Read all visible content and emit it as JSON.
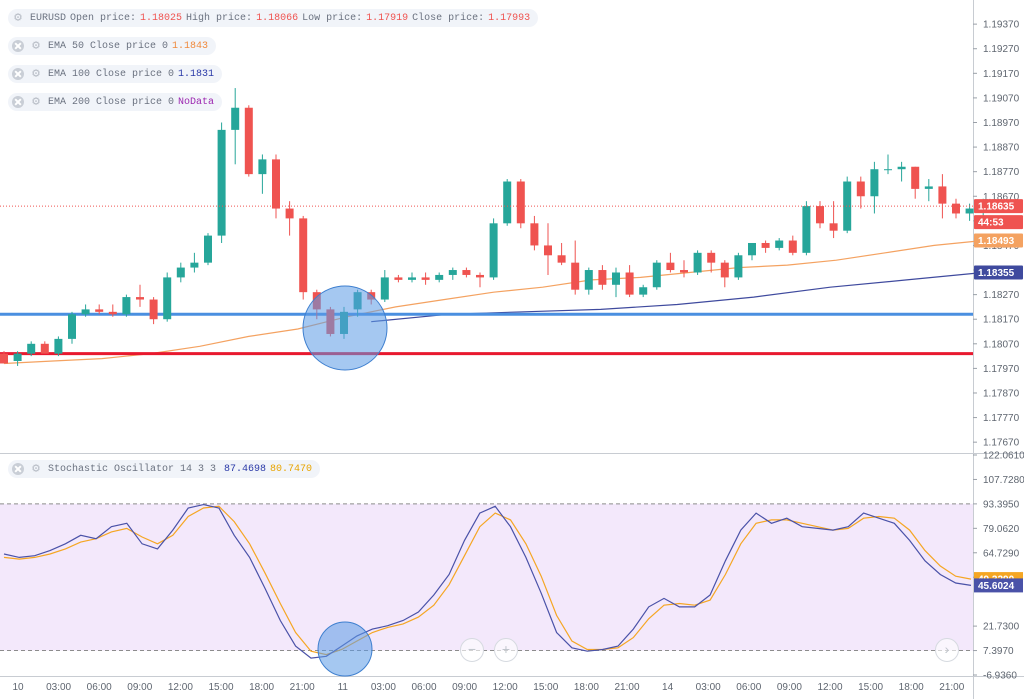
{
  "legends": {
    "main": {
      "symbol": "EURUSD",
      "open_label": "Open price:",
      "open_value": "1.18025",
      "high_label": "High price:",
      "high_value": "1.18066",
      "low_label": "Low price:",
      "low_value": "1.17919",
      "close_label": "Close price:",
      "close_value": "1.17993"
    },
    "ema50": {
      "label": "EMA 50 Close price 0",
      "value": "1.1843"
    },
    "ema100": {
      "label": "EMA 100 Close price 0",
      "value": "1.1831"
    },
    "ema200": {
      "label": "EMA 200 Close price 0",
      "value": "NoData"
    },
    "stoch": {
      "label": "Stochastic Oscillator 14 3 3",
      "k_value": "87.4698",
      "d_value": "80.7470"
    }
  },
  "colors": {
    "up": "#26a69a",
    "down": "#ef5350",
    "ema50": "#f4a261",
    "ema100": "#3f4a9e",
    "k_line": "#4a52a8",
    "d_line": "#f5a623",
    "support": "#e8182e",
    "resistance": "#4a8fe0",
    "stoch_band": "#f3e8fb",
    "circle": "#5b9ae6"
  },
  "chart_data": [
    {
      "type": "candlestick",
      "symbol": "EURUSD",
      "y_ticks": [
        "1.19370",
        "1.19270",
        "1.19170",
        "1.19070",
        "1.18970",
        "1.18870",
        "1.18770",
        "1.18670",
        "1.18570",
        "1.18470",
        "1.18370",
        "1.18270",
        "1.18170",
        "1.18070",
        "1.17970",
        "1.17870",
        "1.17770",
        "1.17670"
      ],
      "ylim": [
        1.1763,
        1.1946
      ],
      "x_ticks": [
        "10",
        "03:00",
        "06:00",
        "09:00",
        "12:00",
        "15:00",
        "18:00",
        "21:00",
        "11",
        "03:00",
        "06:00",
        "09:00",
        "12:00",
        "15:00",
        "18:00",
        "21:00",
        "14",
        "03:00",
        "06:00",
        "09:00",
        "12:00",
        "15:00",
        "18:00",
        "21:00"
      ],
      "price_labels": {
        "last": "1.18635",
        "countdown": "44:53",
        "ema50": "1.18493",
        "ema100": "1.18355"
      },
      "horizontal_lines": {
        "resistance": 1.1819,
        "support": 1.1803
      },
      "candles": [
        [
          1.1803,
          1.1804,
          1.1799,
          1.1799
        ],
        [
          1.18,
          1.1804,
          1.1798,
          1.1803
        ],
        [
          1.1803,
          1.1808,
          1.1802,
          1.1807
        ],
        [
          1.1807,
          1.1808,
          1.1803,
          1.1803
        ],
        [
          1.1803,
          1.181,
          1.1802,
          1.1809
        ],
        [
          1.1809,
          1.182,
          1.1807,
          1.1819
        ],
        [
          1.1819,
          1.1823,
          1.1818,
          1.1821
        ],
        [
          1.1821,
          1.1823,
          1.1819,
          1.182
        ],
        [
          1.182,
          1.1823,
          1.1818,
          1.1819
        ],
        [
          1.1819,
          1.1827,
          1.1818,
          1.1826
        ],
        [
          1.1826,
          1.1831,
          1.1822,
          1.1825
        ],
        [
          1.1825,
          1.1826,
          1.1815,
          1.1817
        ],
        [
          1.1817,
          1.1836,
          1.1816,
          1.1834
        ],
        [
          1.1834,
          1.184,
          1.1832,
          1.1838
        ],
        [
          1.1838,
          1.1844,
          1.1836,
          1.184
        ],
        [
          1.184,
          1.1852,
          1.1839,
          1.1851
        ],
        [
          1.1851,
          1.1897,
          1.1848,
          1.1894
        ],
        [
          1.1894,
          1.1911,
          1.188,
          1.1903
        ],
        [
          1.1903,
          1.1904,
          1.1875,
          1.1876
        ],
        [
          1.1876,
          1.1884,
          1.1868,
          1.1882
        ],
        [
          1.1882,
          1.1884,
          1.1858,
          1.1862
        ],
        [
          1.1862,
          1.1865,
          1.1851,
          1.1858
        ],
        [
          1.1858,
          1.1859,
          1.1825,
          1.1828
        ],
        [
          1.1828,
          1.1829,
          1.1817,
          1.1821
        ],
        [
          1.1821,
          1.1822,
          1.181,
          1.1811
        ],
        [
          1.1811,
          1.1822,
          1.1809,
          1.182
        ],
        [
          1.1821,
          1.1829,
          1.1818,
          1.1828
        ],
        [
          1.1828,
          1.1829,
          1.1823,
          1.1825
        ],
        [
          1.1825,
          1.1837,
          1.1824,
          1.1834
        ],
        [
          1.1834,
          1.1835,
          1.1832,
          1.1833
        ],
        [
          1.1833,
          1.1836,
          1.1832,
          1.1834
        ],
        [
          1.1834,
          1.1836,
          1.1831,
          1.1833
        ],
        [
          1.1833,
          1.1836,
          1.1832,
          1.1835
        ],
        [
          1.1835,
          1.1838,
          1.1833,
          1.1837
        ],
        [
          1.1837,
          1.1838,
          1.1834,
          1.1835
        ],
        [
          1.1835,
          1.1836,
          1.183,
          1.1834
        ],
        [
          1.1834,
          1.1858,
          1.1833,
          1.1856
        ],
        [
          1.1856,
          1.1874,
          1.1855,
          1.1873
        ],
        [
          1.1873,
          1.1874,
          1.1854,
          1.1856
        ],
        [
          1.1856,
          1.1859,
          1.1845,
          1.1847
        ],
        [
          1.1847,
          1.1856,
          1.1835,
          1.1843
        ],
        [
          1.1843,
          1.1848,
          1.1839,
          1.184
        ],
        [
          1.184,
          1.1849,
          1.1827,
          1.1829
        ],
        [
          1.1829,
          1.1838,
          1.1827,
          1.1837
        ],
        [
          1.1837,
          1.1839,
          1.1829,
          1.1831
        ],
        [
          1.1831,
          1.1838,
          1.1826,
          1.1836
        ],
        [
          1.1836,
          1.1839,
          1.1826,
          1.1827
        ],
        [
          1.1827,
          1.1831,
          1.1826,
          1.183
        ],
        [
          1.183,
          1.1841,
          1.1829,
          1.184
        ],
        [
          1.184,
          1.1844,
          1.1836,
          1.1837
        ],
        [
          1.1837,
          1.1841,
          1.1834,
          1.1836
        ],
        [
          1.1836,
          1.1845,
          1.1835,
          1.1844
        ],
        [
          1.1844,
          1.1845,
          1.1836,
          1.184
        ],
        [
          1.184,
          1.1841,
          1.183,
          1.1834
        ],
        [
          1.1834,
          1.1844,
          1.1833,
          1.1843
        ],
        [
          1.1843,
          1.1848,
          1.1841,
          1.1848
        ],
        [
          1.1848,
          1.1849,
          1.1844,
          1.1846
        ],
        [
          1.1846,
          1.185,
          1.1845,
          1.1849
        ],
        [
          1.1849,
          1.1851,
          1.1843,
          1.1844
        ],
        [
          1.1844,
          1.1865,
          1.1843,
          1.1863
        ],
        [
          1.1863,
          1.1865,
          1.1854,
          1.1856
        ],
        [
          1.1856,
          1.1865,
          1.185,
          1.1853
        ],
        [
          1.1853,
          1.1875,
          1.1852,
          1.1873
        ],
        [
          1.1873,
          1.1875,
          1.1862,
          1.1867
        ],
        [
          1.1867,
          1.1881,
          1.186,
          1.1878
        ],
        [
          1.1878,
          1.1884,
          1.1876,
          1.1878
        ],
        [
          1.1878,
          1.1881,
          1.1873,
          1.1879
        ],
        [
          1.1879,
          1.1879,
          1.1866,
          1.187
        ],
        [
          1.187,
          1.1874,
          1.1865,
          1.1871
        ],
        [
          1.1871,
          1.1876,
          1.1858,
          1.1864
        ],
        [
          1.1864,
          1.1866,
          1.1858,
          1.186
        ],
        [
          1.186,
          1.1864,
          1.1857,
          1.1862
        ],
        [
          1.1862,
          1.1866,
          1.1859,
          1.1863
        ]
      ],
      "ema50": [
        1.1799,
        1.18,
        1.1801,
        1.1803,
        1.1806,
        1.181,
        1.1813,
        1.1818,
        1.1822,
        1.1825,
        1.1828,
        1.183,
        1.1833,
        1.1834,
        1.1836,
        1.1838,
        1.1839,
        1.1841,
        1.1844,
        1.1847,
        1.1849
      ],
      "ema100": [
        1.1816,
        1.1819,
        1.182,
        1.1821,
        1.1823,
        1.1826,
        1.183,
        1.1833,
        1.1836
      ]
    },
    {
      "type": "line",
      "title": "Stochastic Oscillator 14 3 3",
      "y_ticks": [
        "122.0610",
        "107.7280",
        "93.3950",
        "79.0620",
        "64.7290",
        "50.3960",
        "21.7300",
        "7.3970",
        "-6.9360"
      ],
      "ylim": [
        -6.936,
        122.061
      ],
      "bands": [
        7.397,
        93.395
      ],
      "price_labels": {
        "d": "49.3290",
        "k": "45.6024"
      },
      "k": [
        64,
        62,
        63,
        66,
        70,
        75,
        73,
        80,
        82,
        70,
        67,
        78,
        91,
        93,
        91,
        75,
        62,
        44,
        25,
        10,
        3,
        4,
        10,
        16,
        20,
        22,
        25,
        30,
        40,
        52,
        72,
        88,
        92,
        80,
        62,
        41,
        18,
        9,
        7,
        8,
        10,
        20,
        33,
        38,
        33,
        33,
        40,
        60,
        78,
        88,
        82,
        85,
        80,
        79,
        78,
        80,
        88,
        85,
        82,
        72,
        60,
        52,
        47,
        45.6
      ],
      "d": [
        62,
        61,
        62,
        64,
        67,
        71,
        73,
        77,
        79,
        74,
        70,
        75,
        86,
        91,
        92,
        83,
        70,
        53,
        35,
        18,
        7,
        5,
        8,
        13,
        18,
        21,
        23,
        27,
        34,
        46,
        63,
        80,
        88,
        84,
        70,
        51,
        28,
        13,
        8,
        8,
        9,
        15,
        26,
        34,
        35,
        34,
        37,
        52,
        70,
        82,
        84,
        84,
        82,
        80,
        78,
        79,
        85,
        86,
        85,
        78,
        66,
        57,
        51,
        49.3
      ]
    }
  ]
}
